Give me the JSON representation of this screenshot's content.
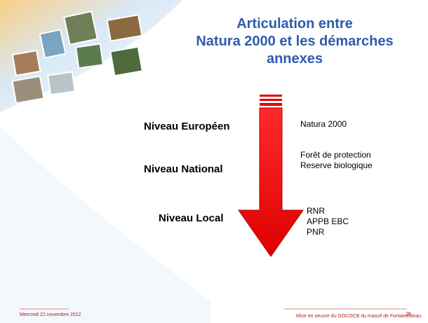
{
  "slide": {
    "title": [
      "Articulation entre",
      "Natura 2000 et les démarches",
      "annexes"
    ],
    "levels": [
      {
        "label": "Niveau Européen",
        "items": [
          "Natura 2000"
        ]
      },
      {
        "label": "Niveau National",
        "items": [
          "Forêt de protection",
          "Reserve biologique"
        ]
      },
      {
        "label": "Niveau Local",
        "items": [
          "RNR",
          "APPB EBC",
          "PNR"
        ]
      }
    ],
    "footer": {
      "date": "Mercredi 21 novembre 2012",
      "project": "Mise en oeuvre du DOCOCB du massif de Fontainebleau",
      "page": "26"
    }
  }
}
